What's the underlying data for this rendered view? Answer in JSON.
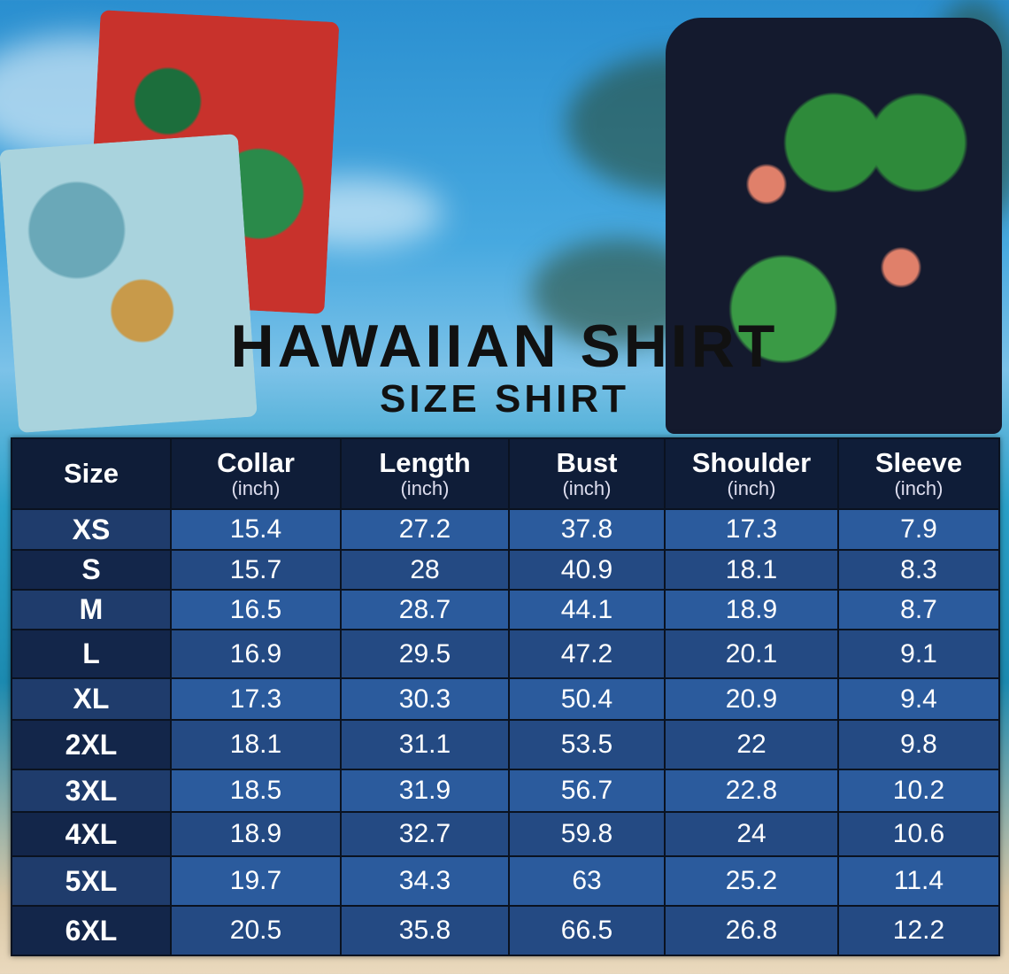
{
  "title": "HAWAIIAN SHIRT",
  "subtitle": "SIZE SHIRT",
  "colors": {
    "header_bg": "#0f1d38",
    "row_light": "#2b5b9d",
    "row_dark": "#244a83",
    "size_col": "#13264a"
  },
  "table": {
    "headers": [
      {
        "label": "Size",
        "unit": ""
      },
      {
        "label": "Collar",
        "unit": "(inch)"
      },
      {
        "label": "Length",
        "unit": "(inch)"
      },
      {
        "label": "Bust",
        "unit": "(inch)"
      },
      {
        "label": "Shoulder",
        "unit": "(inch)"
      },
      {
        "label": "Sleeve",
        "unit": "(inch)"
      }
    ],
    "rows": [
      [
        "XS",
        "15.4",
        "27.2",
        "37.8",
        "17.3",
        "7.9"
      ],
      [
        "S",
        "15.7",
        "28",
        "40.9",
        "18.1",
        "8.3"
      ],
      [
        "M",
        "16.5",
        "28.7",
        "44.1",
        "18.9",
        "8.7"
      ],
      [
        "L",
        "16.9",
        "29.5",
        "47.2",
        "20.1",
        "9.1"
      ],
      [
        "XL",
        "17.3",
        "30.3",
        "50.4",
        "20.9",
        "9.4"
      ],
      [
        "2XL",
        "18.1",
        "31.1",
        "53.5",
        "22",
        "9.8"
      ],
      [
        "3XL",
        "18.5",
        "31.9",
        "56.7",
        "22.8",
        "10.2"
      ],
      [
        "4XL",
        "18.9",
        "32.7",
        "59.8",
        "24",
        "10.6"
      ],
      [
        "5XL",
        "19.7",
        "34.3",
        "63",
        "25.2",
        "11.4"
      ],
      [
        "6XL",
        "20.5",
        "35.8",
        "66.5",
        "26.8",
        "12.2"
      ]
    ]
  }
}
